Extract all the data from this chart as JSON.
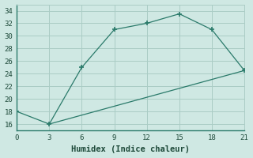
{
  "line1_x": [
    0,
    3,
    6,
    9,
    12,
    15,
    18,
    21
  ],
  "line1_y": [
    18,
    16,
    25,
    31,
    32,
    33.5,
    31,
    24.5
  ],
  "line2_x": [
    3,
    21
  ],
  "line2_y": [
    16,
    24.5
  ],
  "line_color": "#2a7a6a",
  "bg_color": "#cfe8e3",
  "grid_color": "#aaccC5",
  "xlabel": "Humidex (Indice chaleur)",
  "xlim": [
    0,
    21
  ],
  "ylim": [
    15,
    35
  ],
  "xticks": [
    0,
    3,
    6,
    9,
    12,
    15,
    18,
    21
  ],
  "yticks": [
    16,
    18,
    20,
    22,
    24,
    26,
    28,
    30,
    32,
    34
  ],
  "font_color": "#1e4a3a",
  "marker": "+"
}
